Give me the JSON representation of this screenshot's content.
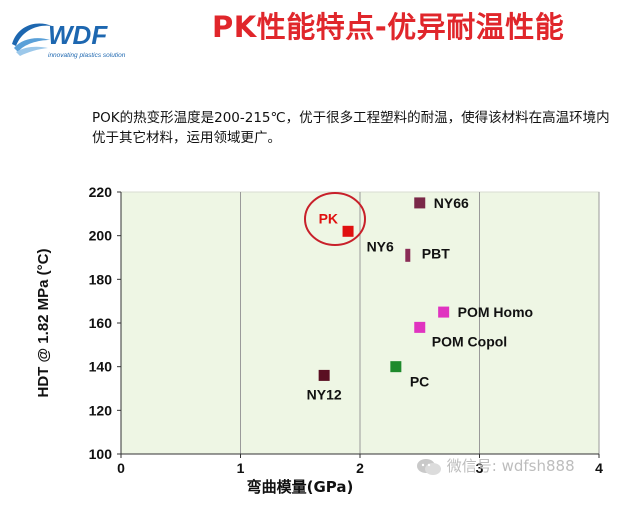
{
  "logo": {
    "text": "WDF",
    "tagline": "innovating plastics solution",
    "color": "#1d67b0"
  },
  "slide_title": "PK性能特点-优异耐温性能",
  "description": "POK的热变形温度是200-215℃，优于很多工程塑料的耐温，使得该材料在高温环境内优于其它材料，运用领域更广。",
  "watermark": "微信号: wdfsh888",
  "chart_data": {
    "type": "scatter",
    "title": "",
    "xlabel": "弯曲模量(GPa)",
    "ylabel": "HDT @ 1.82 MPa (°C)",
    "xlim": [
      0,
      4
    ],
    "ylim": [
      100,
      220
    ],
    "xticks": [
      0,
      1,
      2,
      3,
      4
    ],
    "yticks": [
      100,
      120,
      140,
      160,
      180,
      200,
      220
    ],
    "grid": "vertical",
    "plot_background": "#eef6e4",
    "points": [
      {
        "name": "PK",
        "x": 1.9,
        "y": 202,
        "color": "#e01010",
        "label_color": "#e01010",
        "label_pos": "left",
        "highlight": true
      },
      {
        "name": "NY66",
        "x": 2.5,
        "y": 215,
        "color": "#7a2848",
        "label_color": "#111111",
        "label_pos": "right"
      },
      {
        "name": "NY6",
        "x": 2.4,
        "y": 191,
        "color": "#8a2c56",
        "label_color": "#111111",
        "label_pos": "left"
      },
      {
        "name": "PBT",
        "x": 2.4,
        "y": 191,
        "color": "#8a2c56",
        "label_color": "#111111",
        "label_pos": "right"
      },
      {
        "name": "POM Homo",
        "x": 2.7,
        "y": 165,
        "color": "#e033c0",
        "label_color": "#111111",
        "label_pos": "right"
      },
      {
        "name": "POM Copol",
        "x": 2.5,
        "y": 158,
        "color": "#e033c0",
        "label_color": "#111111",
        "label_pos": "below-right"
      },
      {
        "name": "PC",
        "x": 2.3,
        "y": 140,
        "color": "#1e8a2c",
        "label_color": "#111111",
        "label_pos": "below-right"
      },
      {
        "name": "NY12",
        "x": 1.7,
        "y": 136,
        "color": "#5a0f22",
        "label_color": "#111111",
        "label_pos": "below"
      }
    ]
  }
}
